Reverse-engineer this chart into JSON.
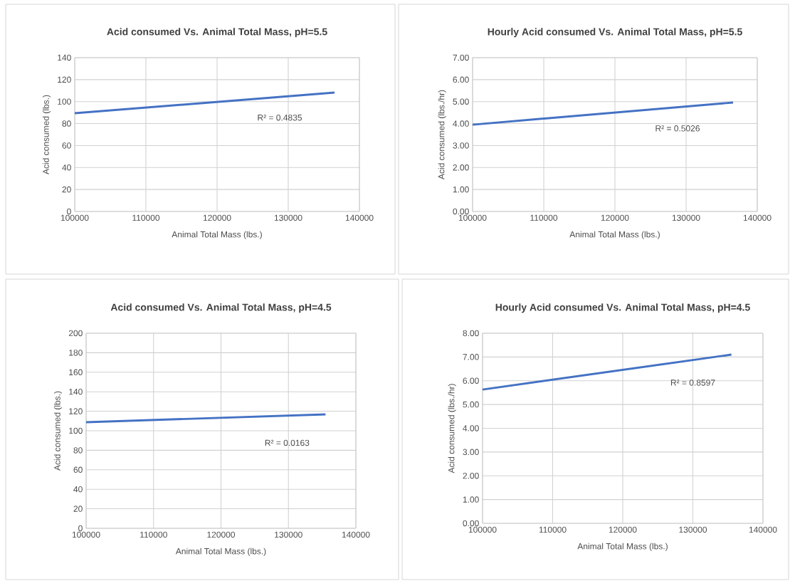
{
  "chart_data": [
    {
      "type": "line",
      "title": "Acid consumed Vs. Animal Total Mass, pH=5.5",
      "xlabel": "Animal Total Mass (lbs.)",
      "ylabel": "Acid consumed (lbs.)",
      "series": [
        {
          "color": "#4472c4",
          "x": [
            100000,
            136500
          ],
          "values": [
            89.4,
            108.2
          ]
        }
      ],
      "xlim": [
        100000,
        140000
      ],
      "xticks": [
        100000,
        110000,
        120000,
        130000,
        140000
      ],
      "ylim": [
        0,
        140
      ],
      "yticks": [
        0,
        20,
        40,
        60,
        80,
        100,
        120,
        140
      ],
      "grid": true,
      "annotations": [
        "R² = 0.4835"
      ]
    },
    {
      "type": "line",
      "title": "Hourly Acid consumed Vs. Animal Total Mass, pH=5.5",
      "xlabel": "Animal Total Mass (lbs.)",
      "ylabel": "Acid consumed (lbs./hr)",
      "series": [
        {
          "color": "#4472c4",
          "x": [
            100000,
            136600
          ],
          "values": [
            3.95,
            4.96
          ]
        }
      ],
      "xlim": [
        100000,
        140000
      ],
      "xticks": [
        100000,
        110000,
        120000,
        130000,
        140000
      ],
      "ylim": [
        0,
        7
      ],
      "yticks": [
        {
          "value": 0,
          "label": "0.00"
        },
        {
          "value": 1,
          "label": "1.00"
        },
        {
          "value": 2,
          "label": "2.00"
        },
        {
          "value": 3,
          "label": "3.00"
        },
        {
          "value": 4,
          "label": "4.00"
        },
        {
          "value": 5,
          "label": "5.00"
        },
        {
          "value": 6,
          "label": "6.00"
        },
        {
          "value": 7,
          "label": "7.00"
        }
      ],
      "grid": true,
      "annotations": [
        "R² = 0.5026"
      ]
    },
    {
      "type": "line",
      "title": "Acid consumed Vs. Animal Total Mass, pH=4.5",
      "xlabel": "Animal Total Mass (lbs.)",
      "ylabel": "Acid consumed (lbs.)",
      "series": [
        {
          "color": "#4472c4",
          "x": [
            100000,
            135500
          ],
          "values": [
            108.8,
            116.8
          ]
        }
      ],
      "xlim": [
        100000,
        140000
      ],
      "xticks": [
        100000,
        110000,
        120000,
        130000,
        140000
      ],
      "ylim": [
        0,
        200
      ],
      "yticks": [
        0,
        20,
        40,
        60,
        80,
        100,
        120,
        140,
        160,
        180,
        200
      ],
      "grid": true,
      "annotations": [
        "R² = 0.0163"
      ]
    },
    {
      "type": "line",
      "title": "Hourly Acid consumed Vs. Animal Total Mass, pH=4.5",
      "xlabel": "Animal Total Mass (lbs.)",
      "ylabel": "Acid consumed (lbs./hr)",
      "series": [
        {
          "color": "#4472c4",
          "x": [
            100000,
            135500
          ],
          "values": [
            5.63,
            7.1
          ]
        }
      ],
      "xlim": [
        100000,
        140000
      ],
      "xticks": [
        100000,
        110000,
        120000,
        130000,
        140000
      ],
      "ylim": [
        0,
        8
      ],
      "yticks": [
        {
          "value": 0,
          "label": "0.00"
        },
        {
          "value": 1,
          "label": "1.00"
        },
        {
          "value": 2,
          "label": "2.00"
        },
        {
          "value": 3,
          "label": "3.00"
        },
        {
          "value": 4,
          "label": "4.00"
        },
        {
          "value": 5,
          "label": "5.00"
        },
        {
          "value": 6,
          "label": "6.00"
        },
        {
          "value": 7,
          "label": "7.00"
        },
        {
          "value": 8,
          "label": "8.00"
        }
      ],
      "grid": true,
      "annotations": [
        "R² = 0.8597"
      ]
    }
  ]
}
